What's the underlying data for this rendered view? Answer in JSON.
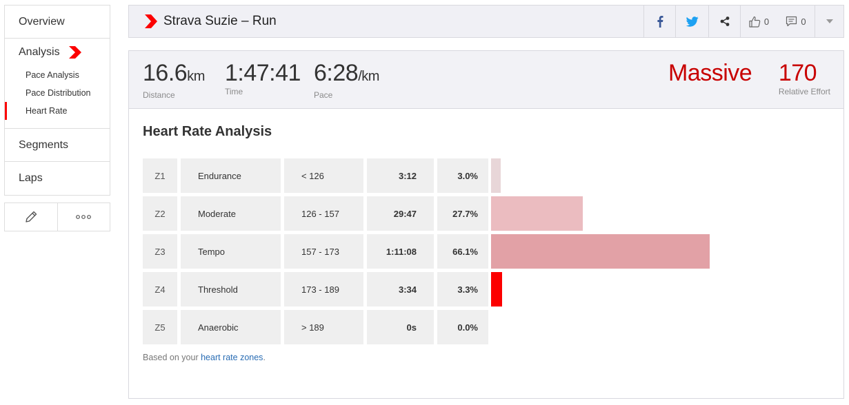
{
  "sidebar": {
    "overview": "Overview",
    "analysis": "Analysis",
    "subitems": [
      "Pace Analysis",
      "Pace Distribution",
      "Heart Rate"
    ],
    "segments": "Segments",
    "laps": "Laps",
    "edit_icon": "pencil-icon",
    "more_icon": "more-icon"
  },
  "header": {
    "title": "Strava Suzie – Run",
    "kudos_count": "0",
    "comment_count": "0"
  },
  "stats": {
    "distance": {
      "value": "16.6",
      "unit": "km",
      "label": "Distance"
    },
    "time": {
      "value": "1:47:41",
      "label": "Time"
    },
    "pace": {
      "value": "6:28",
      "unit": "/km",
      "label": "Pace"
    },
    "effort_word": "Massive",
    "relative_effort": {
      "value": "170",
      "label": "Relative Effort"
    }
  },
  "analysis": {
    "title": "Heart Rate Analysis",
    "zones": [
      {
        "zone": "Z1",
        "name": "Endurance",
        "range": "< 126",
        "time": "3:12",
        "percent": "3.0%",
        "fraction": 0.03,
        "color": "#e8d6d8"
      },
      {
        "zone": "Z2",
        "name": "Moderate",
        "range": "126 - 157",
        "time": "29:47",
        "percent": "27.7%",
        "fraction": 0.277,
        "color": "#ebbcc0"
      },
      {
        "zone": "Z3",
        "name": "Tempo",
        "range": "157 - 173",
        "time": "1:11:08",
        "percent": "66.1%",
        "fraction": 0.661,
        "color": "#e2a1a6"
      },
      {
        "zone": "Z4",
        "name": "Threshold",
        "range": "173 - 189",
        "time": "3:34",
        "percent": "3.3%",
        "fraction": 0.033,
        "color": "#fc0000"
      },
      {
        "zone": "Z5",
        "name": "Anaerobic",
        "range": "> 189",
        "time": "0s",
        "percent": "0.0%",
        "fraction": 0.0,
        "color": "#fc0000"
      }
    ],
    "footnote_prefix": "Based on your ",
    "footnote_link": "heart rate zones",
    "footnote_suffix": "."
  },
  "colors": {
    "accent": "#fc0000",
    "effort": "#c80000",
    "link": "#2a6db4"
  }
}
